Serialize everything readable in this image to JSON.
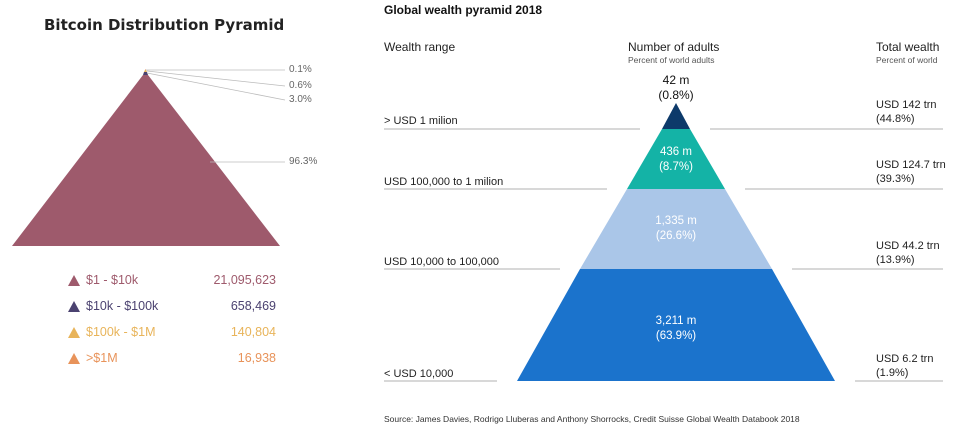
{
  "bitcoin": {
    "title": "Bitcoin Distribution Pyramid",
    "percents": [
      "0.1%",
      "0.6%",
      "3.0%",
      "96.3%"
    ],
    "legend": [
      {
        "label": "$1 - $10k",
        "value": "21,095,623",
        "color": "#9e5a6c"
      },
      {
        "label": "$10k - $100k",
        "value": "658,469",
        "color": "#4b4270"
      },
      {
        "label": "$100k - $1M",
        "value": "140,804",
        "color": "#e8b45a"
      },
      {
        "label": ">$1M",
        "value": "16,938",
        "color": "#e8935a"
      }
    ]
  },
  "global": {
    "title": "Global wealth pyramid 2018",
    "headers": {
      "range": "Wealth range",
      "adults": "Number of adults",
      "adults_sub": "Percent of world adults",
      "total": "Total wealth",
      "total_sub": "Percent of world"
    },
    "top_label": {
      "count": "42 m",
      "pct": "(0.8%)"
    },
    "ranges": [
      "> USD 1 milion",
      "USD 100,000 to 1 milion",
      "USD 10,000 to 100,000",
      "< USD 10,000"
    ],
    "bands": [
      {
        "count": "42 m",
        "pct": "(0.8%)",
        "color": "#0d3a6a"
      },
      {
        "count": "436 m",
        "pct": "(8.7%)",
        "color": "#14b3a6"
      },
      {
        "count": "1,335 m",
        "pct": "(26.6%)",
        "color": "#aac6e8"
      },
      {
        "count": "3,211 m",
        "pct": "(63.9%)",
        "color": "#1b73cc"
      }
    ],
    "total_wealth": [
      {
        "value": "USD 142 trn",
        "pct": "(44.8%)"
      },
      {
        "value": "USD 124.7 trn",
        "pct": "(39.3%)"
      },
      {
        "value": "USD 44.2 trn",
        "pct": "(13.9%)"
      },
      {
        "value": "USD 6.2 trn",
        "pct": "(1.9%)"
      }
    ],
    "source": "Source: James Davies, Rodrigo Lluberas and Anthony Shorrocks, Credit Suisse Global Wealth Databook 2018"
  }
}
